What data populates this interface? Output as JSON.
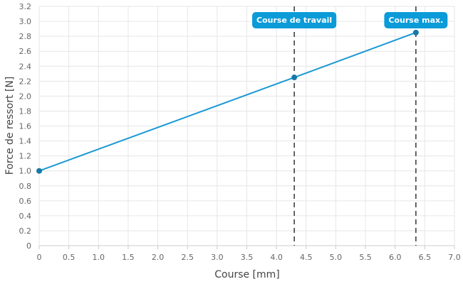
{
  "chart_data": {
    "type": "line",
    "xlabel": "Course [mm]",
    "ylabel": "Force de ressort [N]",
    "xlim": [
      0,
      7.0
    ],
    "ylim": [
      0,
      3.2
    ],
    "x_ticks": [
      "0",
      "0.5",
      "1.0",
      "1.5",
      "2.0",
      "2.5",
      "3.0",
      "3.5",
      "4.0",
      "4.5",
      "5.0",
      "5.5",
      "6.0",
      "6.5",
      "7.0"
    ],
    "y_ticks": [
      "0",
      "0.2",
      "0.4",
      "0.6",
      "0.8",
      "1.0",
      "1.2",
      "1.4",
      "1.6",
      "1.8",
      "2.0",
      "2.2",
      "2.4",
      "2.6",
      "2.8",
      "3.0",
      "3.2"
    ],
    "grid": true,
    "series": [
      {
        "color": "#1a98d5",
        "points": [
          {
            "x": 0,
            "y": 1.0
          },
          {
            "x": 4.3,
            "y": 2.25
          },
          {
            "x": 6.35,
            "y": 2.85
          }
        ]
      }
    ],
    "annotations": [
      {
        "x": 4.3,
        "label": "Course de travail",
        "style": "dashed-vertical"
      },
      {
        "x": 6.35,
        "label": "Course max.",
        "style": "dashed-vertical"
      }
    ],
    "annotation_color": "#0a9bd8"
  }
}
